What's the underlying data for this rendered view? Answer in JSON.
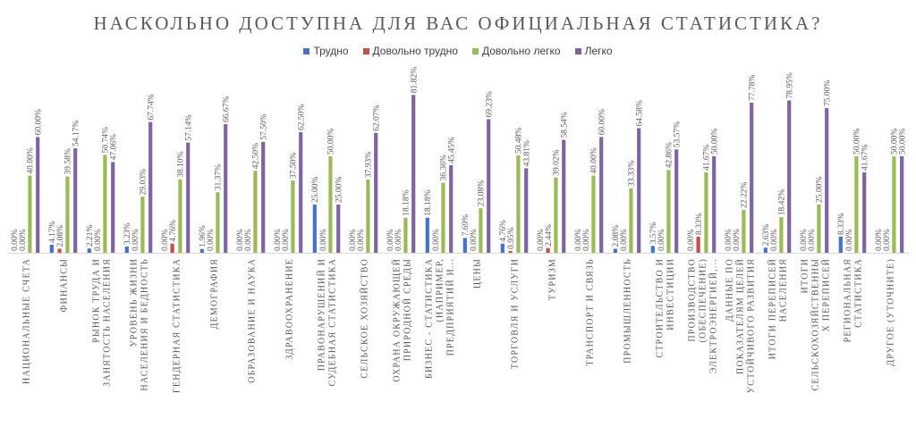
{
  "chart_data": {
    "type": "bar",
    "title": "НАСКОЛЬНО ДОСТУПНА ДЛЯ ВАС ОФИЦИАЛЬНАЯ СТАТИСТИКА?",
    "legend_position": "top",
    "ylim": [
      0,
      100
    ],
    "grid": false,
    "categories": [
      [
        "НАЦИОНАЛЬНЫЕ СЧЕТА"
      ],
      [
        "ФИНАНСЫ"
      ],
      [
        "РЫНОК ТРУДА И",
        "ЗАНЯТОСТЬ НАСЕЛЕНИЯ"
      ],
      [
        "УРОВЕНЬ ЖИЗНИ",
        "НАСЕЛЕНИЯ И БЕДНОСТЬ"
      ],
      [
        "ГЕНДЕРНАЯ СТАТИСТИКА"
      ],
      [
        "ДЕМОГРАФИЯ"
      ],
      [
        "ОБРАЗОВАНИЕ И НАУКА"
      ],
      [
        "ЗДРАВООХРАНЕНИЕ"
      ],
      [
        "ПРАВОНАРУШЕНИЙ И",
        "СУДЕБНАЯ СТАТИСТИКА"
      ],
      [
        "СЕЛЬСКОЕ ХОЗЯЙСТВО"
      ],
      [
        "ОХРАНА ОКРУЖАЮЩЕЙ",
        "ПРИРОДНОЙ СРЕДЫ"
      ],
      [
        "БИЗНЕС - СТАТИСТИКА",
        "(НАПРИМЕР,",
        "ПРЕДПРИЯТИЙ И..."
      ],
      [
        "ЦЕНЫ"
      ],
      [
        "ТОРГОВЛЯ И УСЛУГИ"
      ],
      [
        "ТУРИЗМ"
      ],
      [
        "ТРАНСПОРТ И СВЯЗЬ"
      ],
      [
        "ПРОМЫШЛЕННОСТЬ"
      ],
      [
        "СТРОИТЕЛЬСТВО И",
        "ИНВЕСТИЦИИ"
      ],
      [
        "ПРОИЗВОДСТВО",
        "(ОБЕСПЕЧЕНИЕ)",
        "ЭЛЕКТРОЭНЕРГИЕЙ,..."
      ],
      [
        "ДАННЫЕ ПО",
        "ПОКАЗАТЕЛЯМ ЦЕЛЕЙ",
        "УСТОЙЧИВОГО РАЗВИТИЯ"
      ],
      [
        "ИТОГИ ПЕРЕПИСЕЙ",
        "НАСЕЛЕНИЯ"
      ],
      [
        "ИТОГИ",
        "СЕЛЬСКОХОЗЯЙСТВЕННЫ",
        "Х ПЕРЕПИСЕЙ"
      ],
      [
        "РЕГИОНАЛЬНАЯ",
        "СТАТИСТИКА"
      ],
      [
        "ДРУГОЕ (УТОЧНИТЕ)"
      ]
    ],
    "series": [
      {
        "name": "Трудно",
        "color": "#4472C4",
        "values": [
          0.0,
          4.17,
          2.21,
          3.23,
          0.0,
          1.96,
          0.0,
          0.0,
          25.0,
          0.0,
          0.0,
          18.18,
          7.69,
          4.76,
          0.0,
          0.0,
          2.08,
          3.57,
          0.0,
          0.0,
          2.63,
          0.0,
          8.33,
          0.0
        ],
        "labels": [
          "0.00%",
          "4.17%",
          "2.21%",
          "3.23%",
          "0.00%",
          "1.96%",
          "0.00%",
          "0.00%",
          "25.00%",
          "0.00%",
          "0.00%",
          "18.18%",
          "7.69%",
          "4.76%",
          "0.00%",
          "0.00%",
          "2.08%",
          "3.57%",
          "0.00%",
          "0.00%",
          "2.63%",
          "0.00%",
          "8.33%",
          "0.00%"
        ]
      },
      {
        "name": "Довольно трудно",
        "color": "#C0504D",
        "values": [
          0.0,
          2.08,
          0.0,
          0.0,
          4.76,
          0.0,
          0.0,
          0.0,
          0.0,
          0.0,
          0.0,
          0.0,
          0.0,
          0.95,
          2.44,
          0.0,
          0.0,
          0.0,
          8.33,
          0.0,
          0.0,
          0.0,
          0.0,
          0.0
        ],
        "labels": [
          "0.00%",
          "2.08%",
          "0.00%",
          "0.00%",
          "4.76%",
          "0.00%",
          "0.00%",
          "0.00%",
          "0.00%",
          "0.00%",
          "0.00%",
          "0.00%",
          "0.00%",
          "0.95%",
          "2.44%",
          "0.00%",
          "0.00%",
          "0.00%",
          "8.33%",
          "0.00%",
          "0.00%",
          "0.00%",
          "0.00%",
          "0.00%"
        ]
      },
      {
        "name": "Довольно легко",
        "color": "#9BBB59",
        "values": [
          40.0,
          39.58,
          50.74,
          29.03,
          38.1,
          31.37,
          42.5,
          37.5,
          50.0,
          37.93,
          18.18,
          36.36,
          23.08,
          50.48,
          39.02,
          40.0,
          33.33,
          42.86,
          41.67,
          22.22,
          18.42,
          25.0,
          50.0,
          50.0
        ],
        "labels": [
          "40.00%",
          "39.58%",
          "50.74%",
          "29.03%",
          "38.10%",
          "31.37%",
          "42.50%",
          "37.50%",
          "50.00%",
          "37.93%",
          "18.18%",
          "36.36%",
          "23.08%",
          "50.48%",
          "39.02%",
          "40.00%",
          "33.33%",
          "42.86%",
          "41.67%",
          "22.22%",
          "18.42%",
          "25.00%",
          "50.00%",
          "50.00%"
        ]
      },
      {
        "name": "Легко",
        "color": "#8064A2",
        "values": [
          60.0,
          54.17,
          47.06,
          67.74,
          57.14,
          66.67,
          57.5,
          62.5,
          25.0,
          62.07,
          81.82,
          45.45,
          69.23,
          43.81,
          58.54,
          60.0,
          64.58,
          53.57,
          50.0,
          77.78,
          78.95,
          75.0,
          41.67,
          50.0
        ],
        "labels": [
          "60.00%",
          "54.17%",
          "47.06%",
          "67.74%",
          "57.14%",
          "66.67%",
          "57.50%",
          "62.50%",
          "25.00%",
          "62.07%",
          "81.82%",
          "45.45%",
          "69.23%",
          "43.81%",
          "58.54%",
          "60.00%",
          "64.58%",
          "53.57%",
          "50.00%",
          "77.78%",
          "78.95%",
          "75.00%",
          "41.67%",
          "50.00%"
        ]
      }
    ]
  }
}
